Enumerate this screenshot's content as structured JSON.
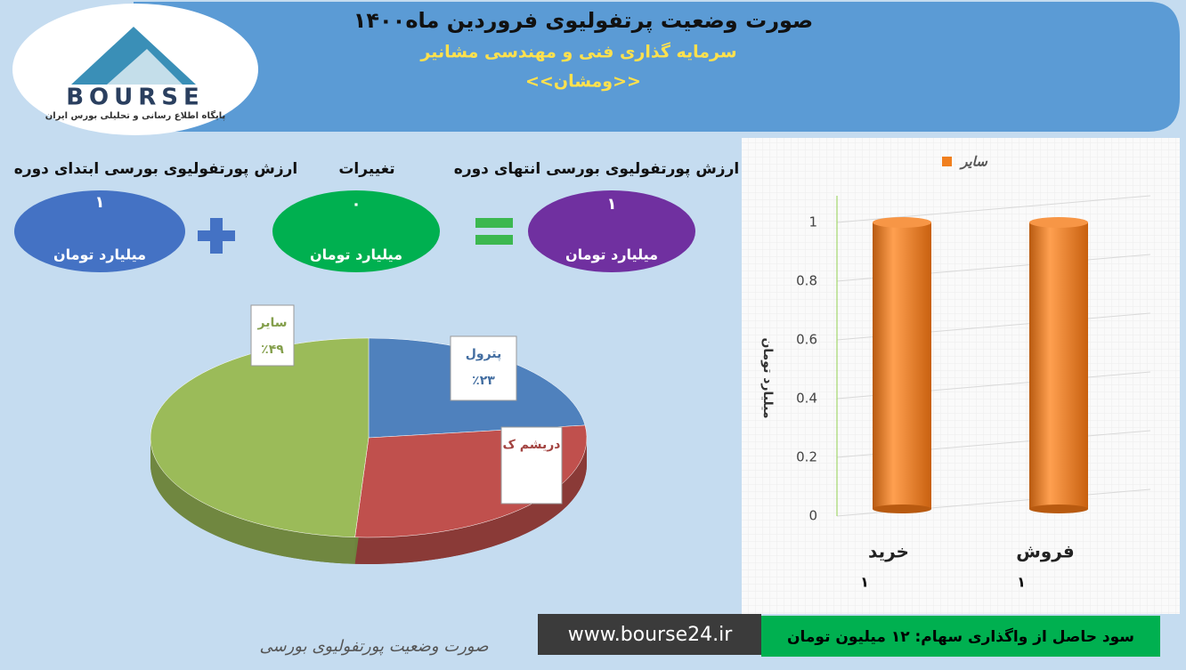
{
  "header": {
    "title": "صورت وضعیت پرتفولیوی فروردین ماه۱۴۰۰",
    "subtitle": "سرمایه گذاری فنی و مهندسی مشانیر",
    "symbol": "<<ومشان>>"
  },
  "logo": {
    "name": "BOURSE",
    "tagline": "پایگاه اطلاع رسانی و تحلیلی بورس ایران"
  },
  "summary": [
    {
      "label": "ارزش پورتفولیوی بورسی ابتدای دوره",
      "value": "۱",
      "unit": "میلیارد تومان"
    },
    {
      "label": "تغییرات",
      "value": "۰",
      "unit": "میلیارد تومان"
    },
    {
      "label": "ارزش پورتفولیوی بورسی انتهای دوره",
      "value": "۱",
      "unit": "میلیارد تومان"
    }
  ],
  "chart_data": [
    {
      "type": "pie",
      "categories": [
        "پترول",
        "دریشم ک",
        "سایر"
      ],
      "values": [
        23,
        28,
        49
      ],
      "value_labels": [
        "٪۲۳",
        null,
        "٪۴۹"
      ],
      "colors": [
        "#4f81bd",
        "#c0504d",
        "#9bbb59"
      ]
    },
    {
      "type": "bar",
      "categories": [
        "خرید",
        "فروش"
      ],
      "series": [
        {
          "name": "سایر",
          "color": "#f07f1e",
          "values": [
            1,
            1
          ],
          "value_labels": [
            "۱",
            "۱"
          ]
        }
      ],
      "ylabel": "میلیارد تومان",
      "ylim": [
        0,
        1
      ],
      "yticks": [
        0,
        0.2,
        0.4,
        0.6,
        0.8,
        1
      ],
      "grid": true
    }
  ],
  "footer": {
    "profit": "سود حاصل از واگذاری سهام: ۱۲ میلیون تومان",
    "url": "www.bourse24.ir",
    "caption": "صورت وضعیت پورتفولیوی بورسی"
  }
}
